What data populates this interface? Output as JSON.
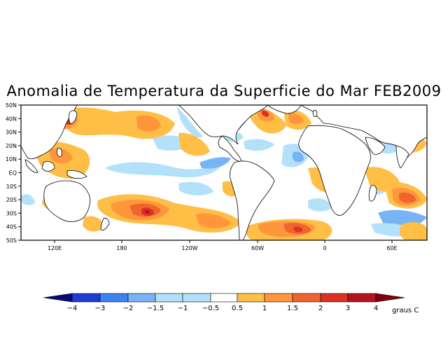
{
  "title": "Anomalia de Temperatura da Superficie do Mar FEB2009",
  "lat_labels": [
    "50N",
    "40N",
    "30N",
    "20N",
    "10N",
    "EQ",
    "10S",
    "20S",
    "30S",
    "40S",
    "50S"
  ],
  "lon_labels": [
    "120E",
    "180",
    "120W",
    "60W",
    "0",
    "60E"
  ],
  "colorbar": {
    "labels": [
      "−4",
      "−3",
      "−2",
      "−1.5",
      "−1",
      "−0.5",
      "0.5",
      "1",
      "1.5",
      "2",
      "3",
      "4"
    ],
    "unit": "graus C",
    "colors": [
      "#0a0a78",
      "#1e3cd2",
      "#3c82f0",
      "#78b4f5",
      "#b4e1fa",
      "#ffffff",
      "#ffbe46",
      "#ff963c",
      "#f0642d",
      "#dc3223",
      "#b4141e",
      "#82000f"
    ]
  },
  "colors": {
    "land": "#ffffff",
    "coast": "#000000",
    "warm_light": "#ffbe46",
    "warm_mid": "#ff963c",
    "warm_strong": "#f0642d",
    "warm_hot": "#dc3223",
    "warm_extreme": "#b4141e",
    "cool_light": "#b4e1fa",
    "cool_mid": "#78b4f5",
    "cool_strong": "#3c82f0"
  }
}
